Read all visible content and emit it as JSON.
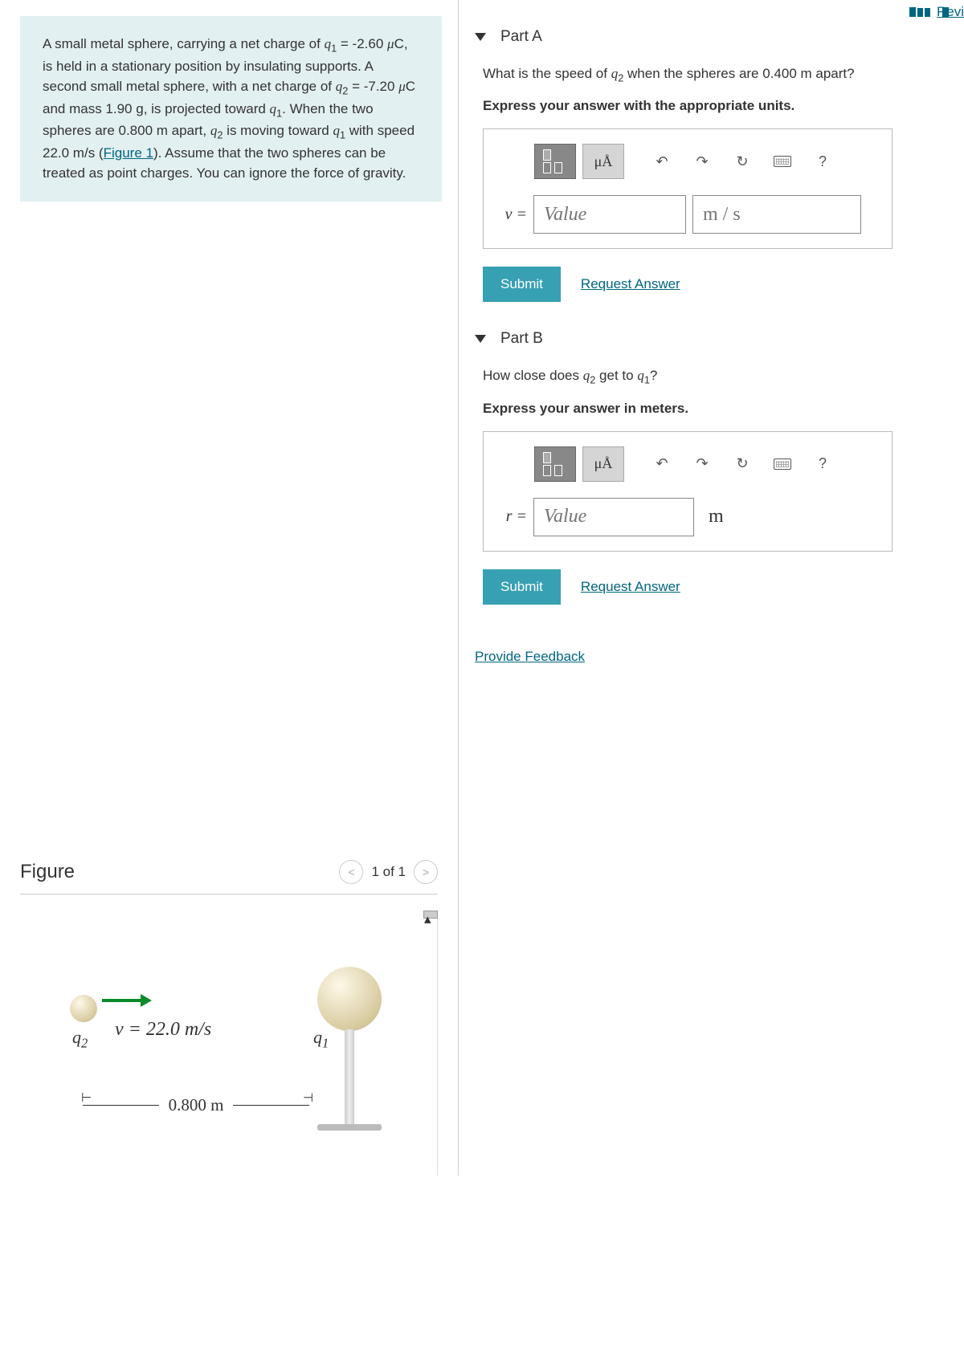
{
  "review_label": "Revi",
  "problem": {
    "html": "A small metal sphere, carrying a net charge of <span class='it'>q</span><sub>1</sub> = -2.60 <span class='it'>μ</span>C, is held in a stationary position by insulating supports. A second small metal sphere, with a net charge of <span class='it'>q</span><sub>2</sub> = -7.20 <span class='it'>μ</span>C and mass 1.90 g, is projected toward <span class='it'>q</span><sub>1</sub>. When the two spheres are 0.800 m apart, <span class='it'>q</span><sub>2</sub> is moving toward <span class='it'>q</span><sub>1</sub> with speed 22.0 m/s (<a href='#' class='link' data-name='figure-link' data-interactable='true'>Figure 1</a>). Assume that the two spheres can be treated as point charges. You can ignore the force of gravity."
  },
  "parts": {
    "a": {
      "title": "Part A",
      "question_html": "What is the speed of <span class='it'>q</span><sub>2</sub> when the spheres are 0.400 m apart?",
      "instruction": "Express your answer with the appropriate units.",
      "var_label": "v =",
      "value_placeholder": "Value",
      "unit_placeholder": "m / s",
      "unit_editable": true
    },
    "b": {
      "title": "Part B",
      "question_html": "How close does <span class='it'>q</span><sub>2</sub> get to <span class='it'>q</span><sub>1</sub>?",
      "instruction": "Express your answer in meters.",
      "var_label": "r =",
      "value_placeholder": "Value",
      "unit_fixed": "m"
    }
  },
  "toolbar": {
    "mu_a": "μÅ",
    "undo": "↶",
    "redo": "↷",
    "reset": "↻",
    "help": "?"
  },
  "buttons": {
    "submit": "Submit",
    "request": "Request Answer",
    "feedback": "Provide Feedback"
  },
  "figure": {
    "title": "Figure",
    "nav_label": "1 of 1",
    "velocity_label": "v = 22.0 m/s",
    "q1": "q",
    "q1_sub": "1",
    "q2": "q",
    "q2_sub": "2",
    "distance": "0.800 m"
  },
  "colors": {
    "accent": "#37a0b3",
    "link": "#006680",
    "problem_bg": "#e3f0f2",
    "arrow": "#0a8a2a"
  }
}
